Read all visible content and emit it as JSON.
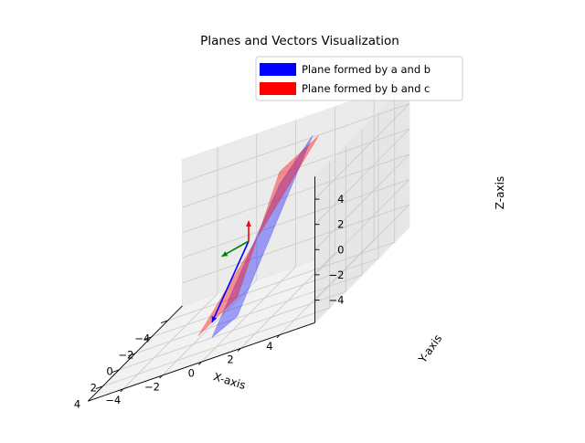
{
  "chart_data": {
    "type": "3d-surface",
    "title": "Planes and Vectors Visualization",
    "xlabel": "X-axis",
    "ylabel": "Y-axis",
    "zlabel": "Z-axis",
    "xlim": [
      -5,
      5
    ],
    "ylim": [
      -5,
      5
    ],
    "zlim": [
      -5,
      5
    ],
    "xticks": [
      "−4",
      "−2",
      "0",
      "2",
      "4"
    ],
    "yticks": [
      "−4",
      "−2",
      "0",
      "2",
      "4"
    ],
    "zticks": [
      "−4",
      "−2",
      "0",
      "2",
      "4"
    ],
    "grid": true,
    "legend": {
      "placement": "top-right",
      "entries": [
        {
          "label": "Plane formed by a and b",
          "color": "#0000ff"
        },
        {
          "label": "Plane formed by b and c",
          "color": "#ff0000"
        }
      ]
    },
    "planes": [
      {
        "legend_index": 0,
        "color": "#0000ff",
        "opacity": 0.35,
        "corners": [
          [
            -5.0,
            -0.5,
            1.5
          ],
          [
            -5.0,
            1.2,
            4.5
          ],
          [
            5.0,
            0.2,
            -4.5
          ],
          [
            5.0,
            1.5,
            -3.5
          ]
        ]
      },
      {
        "legend_index": 1,
        "color": "#ff0000",
        "opacity": 0.4,
        "corners": [
          [
            -5.0,
            -0.5,
            2.5
          ],
          [
            -5.0,
            1.5,
            4.3
          ],
          [
            5.0,
            1.5,
            -2.0
          ],
          [
            5.0,
            -0.5,
            -4.0
          ]
        ]
      }
    ],
    "vectors": [
      {
        "name": "a",
        "color": "#0000ff",
        "start": [
          0,
          0,
          0
        ],
        "end": [
          4.5,
          0,
          -3.5
        ]
      },
      {
        "name": "b",
        "color": "#ff0000",
        "start": [
          0,
          0,
          0
        ],
        "end": [
          0,
          0,
          1.6
        ]
      },
      {
        "name": "c",
        "color": "#008000",
        "start": [
          0,
          0,
          0
        ],
        "end": [
          -0.3,
          -1.5,
          -0.6
        ]
      }
    ]
  }
}
